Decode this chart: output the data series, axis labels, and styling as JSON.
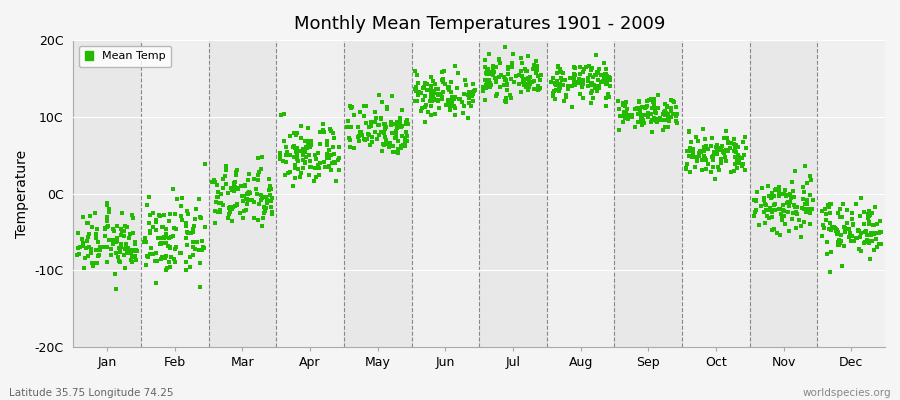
{
  "title": "Monthly Mean Temperatures 1901 - 2009",
  "ylabel": "Temperature",
  "subtitle_left": "Latitude 35.75 Longitude 74.25",
  "subtitle_right": "worldspecies.org",
  "ylim": [
    -20,
    20
  ],
  "yticks": [
    -20,
    -10,
    0,
    10,
    20
  ],
  "ytick_labels": [
    "-20C",
    "-10C",
    "0C",
    "10C",
    "20C"
  ],
  "months": [
    "Jan",
    "Feb",
    "Mar",
    "Apr",
    "May",
    "Jun",
    "Jul",
    "Aug",
    "Sep",
    "Oct",
    "Nov",
    "Dec"
  ],
  "dot_color": "#22bb00",
  "bg_color_odd": "#f0f0f0",
  "bg_color_even": "#e8e8e8",
  "outer_bg": "#f5f5f5",
  "mean_temps": {
    "Jan": {
      "mean": -6.5,
      "std": 2.0
    },
    "Feb": {
      "mean": -6.0,
      "std": 2.5
    },
    "Mar": {
      "mean": -0.5,
      "std": 2.0
    },
    "Apr": {
      "mean": 5.0,
      "std": 2.0
    },
    "May": {
      "mean": 8.5,
      "std": 1.8
    },
    "Jun": {
      "mean": 13.0,
      "std": 1.5
    },
    "Jul": {
      "mean": 15.0,
      "std": 1.2
    },
    "Aug": {
      "mean": 14.5,
      "std": 1.2
    },
    "Sep": {
      "mean": 10.5,
      "std": 1.0
    },
    "Oct": {
      "mean": 5.0,
      "std": 1.5
    },
    "Nov": {
      "mean": -1.5,
      "std": 2.0
    },
    "Dec": {
      "mean": -4.5,
      "std": 1.8
    }
  },
  "n_points": 109,
  "marker_size": 4,
  "legend_label": "Mean Temp"
}
